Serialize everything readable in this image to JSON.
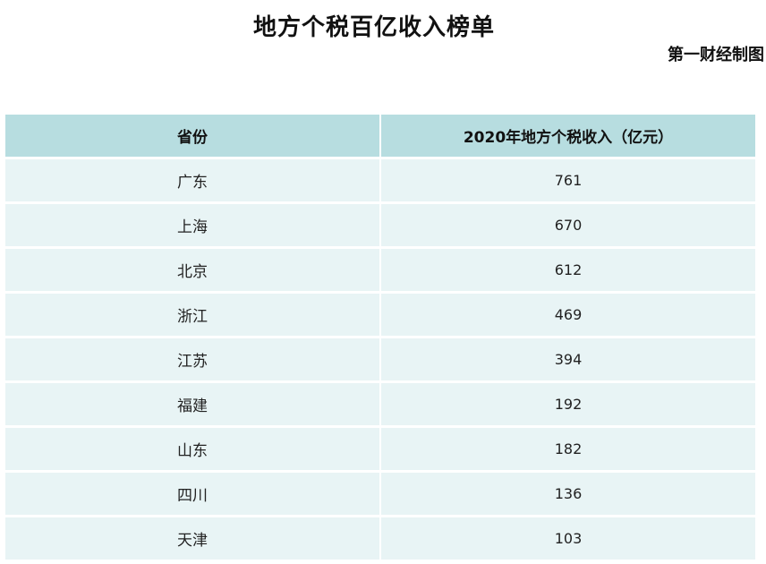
{
  "title": "地方个税百亿收入榜单",
  "source": "第一财经制图",
  "chart_data": {
    "type": "table",
    "title": "地方个税百亿收入榜单",
    "columns": [
      "省份",
      "2020年地方个税收入（亿元）"
    ],
    "rows": [
      {
        "province": "广东",
        "value": "761"
      },
      {
        "province": "上海",
        "value": "670"
      },
      {
        "province": "北京",
        "value": "612"
      },
      {
        "province": "浙江",
        "value": "469"
      },
      {
        "province": "江苏",
        "value": "394"
      },
      {
        "province": "福建",
        "value": "192"
      },
      {
        "province": "山东",
        "value": "182"
      },
      {
        "province": "四川",
        "value": "136"
      },
      {
        "province": "天津",
        "value": "103"
      }
    ],
    "colors": {
      "header_bg": "#b7dde0",
      "row_bg": "#e8f4f5"
    }
  }
}
